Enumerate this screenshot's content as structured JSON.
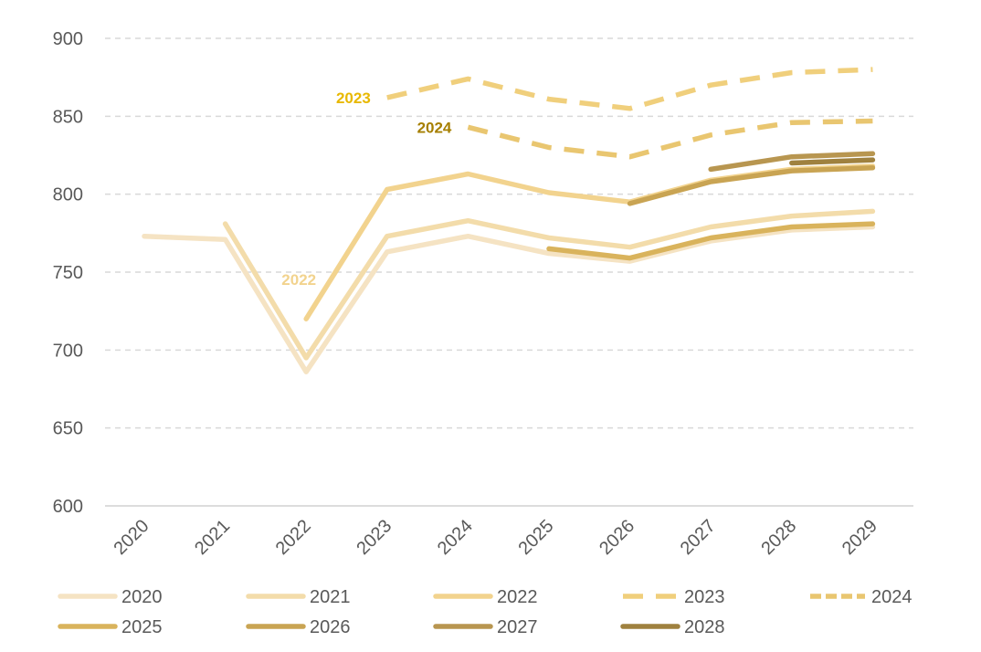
{
  "chart_data": {
    "type": "line",
    "title": "",
    "xlabel": "",
    "ylabel": "",
    "ylim": [
      600,
      900
    ],
    "yticks": [
      600,
      650,
      700,
      750,
      800,
      850,
      900
    ],
    "grid": "horizontal dashed",
    "legend_position": "bottom",
    "categories": [
      "2020",
      "2021",
      "2022",
      "2023",
      "2024",
      "2025",
      "2026",
      "2027",
      "2028",
      "2029"
    ],
    "series": [
      {
        "name": "2020",
        "color": "#f5e3c3",
        "dashed": false,
        "values": [
          773,
          771,
          686,
          763,
          773,
          762,
          757,
          770,
          777,
          779
        ]
      },
      {
        "name": "2021",
        "color": "#f3dcaa",
        "dashed": false,
        "values": [
          null,
          781,
          695,
          773,
          783,
          772,
          766,
          779,
          786,
          789
        ]
      },
      {
        "name": "2022",
        "color": "#f2d38e",
        "dashed": false,
        "values": [
          null,
          null,
          720,
          803,
          813,
          801,
          795,
          809,
          816,
          818
        ]
      },
      {
        "name": "2023",
        "color": "#f0cf7c",
        "dashed": true,
        "values": [
          null,
          null,
          null,
          862,
          874,
          861,
          855,
          870,
          878,
          880
        ]
      },
      {
        "name": "2024",
        "color": "#e9c670",
        "dashed": true,
        "values": [
          null,
          null,
          null,
          null,
          843,
          830,
          824,
          838,
          846,
          847
        ]
      },
      {
        "name": "2025",
        "color": "#d9b35c",
        "dashed": false,
        "values": [
          null,
          null,
          null,
          null,
          null,
          765,
          759,
          772,
          779,
          781
        ]
      },
      {
        "name": "2026",
        "color": "#c9a453",
        "dashed": false,
        "values": [
          null,
          null,
          null,
          null,
          null,
          null,
          794,
          808,
          815,
          817
        ]
      },
      {
        "name": "2027",
        "color": "#b89650",
        "dashed": false,
        "values": [
          null,
          null,
          null,
          null,
          null,
          null,
          null,
          816,
          824,
          826
        ]
      },
      {
        "name": "2028",
        "color": "#9f813f",
        "dashed": false,
        "values": [
          null,
          null,
          null,
          null,
          null,
          null,
          null,
          null,
          820,
          822
        ]
      }
    ],
    "annotations": [
      {
        "text": "2023",
        "color": "#e8b800",
        "series": "2023"
      },
      {
        "text": "2024",
        "color": "#a67f00",
        "series": "2024"
      },
      {
        "text": "2022",
        "color": "#f2d38e",
        "series": "2022"
      }
    ]
  }
}
